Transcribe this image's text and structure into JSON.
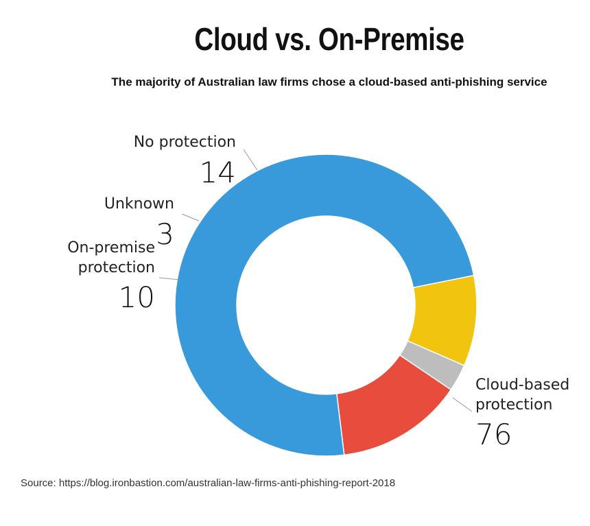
{
  "chart_data": {
    "type": "pie",
    "title": "Cloud vs. On-Premise",
    "subtitle": "The majority of Australian law firms chose a cloud-based anti-phishing service",
    "slices": [
      {
        "label_lines": [
          "Cloud-based",
          "protection"
        ],
        "value": 76,
        "color": "#3899db"
      },
      {
        "label_lines": [
          "On-premise",
          "protection"
        ],
        "value": 10,
        "color": "#f1c40f"
      },
      {
        "label_lines": [
          "Unknown"
        ],
        "value": 3,
        "color": "#bdbdbd"
      },
      {
        "label_lines": [
          "No protection"
        ],
        "value": 14,
        "color": "#e74c3c"
      }
    ],
    "source": "Source: https://blog.ironbastion.com/australian-law-firms-anti-phishing-report-2018"
  }
}
